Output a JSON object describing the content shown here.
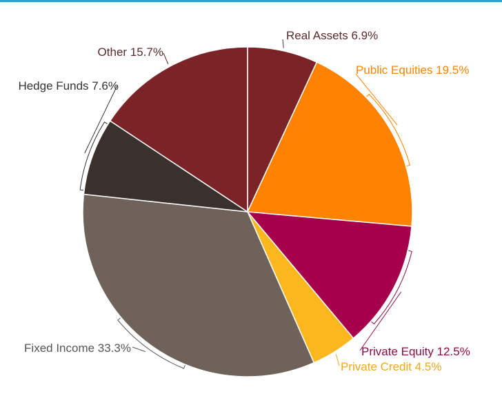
{
  "page": {
    "accent_color": "#2a9fd8"
  },
  "chart_data": {
    "type": "pie",
    "title": "",
    "slices": [
      {
        "label": "Real Assets 6.9%",
        "name": "Real Assets",
        "value": 6.9,
        "color": "#7a2428",
        "text_color": "#5a2a2a"
      },
      {
        "label": "Public Equities 19.5%",
        "name": "Public Equities",
        "value": 19.5,
        "color": "#ff8300",
        "text_color": "#ff8300"
      },
      {
        "label": "Private Equity 12.5%",
        "name": "Private Equity",
        "value": 12.5,
        "color": "#a6004d",
        "text_color": "#8a0b45"
      },
      {
        "label": "Private Credit 4.5%",
        "name": "Private Credit",
        "value": 4.5,
        "color": "#fdb71e",
        "text_color": "#f0a818"
      },
      {
        "label": "Fixed Income 33.3%",
        "name": "Fixed Income",
        "value": 33.3,
        "color": "#6e625a",
        "text_color": "#555555"
      },
      {
        "label": "Hedge Funds 7.6%",
        "name": "Hedge Funds",
        "value": 7.6,
        "color": "#3a302e",
        "text_color": "#333333"
      },
      {
        "label": "Other 15.7%",
        "name": "Other",
        "value": 15.7,
        "color": "#7a2428",
        "text_color": "#5a2a2a"
      }
    ],
    "start_angle_deg": 0,
    "direction": "clockwise"
  }
}
